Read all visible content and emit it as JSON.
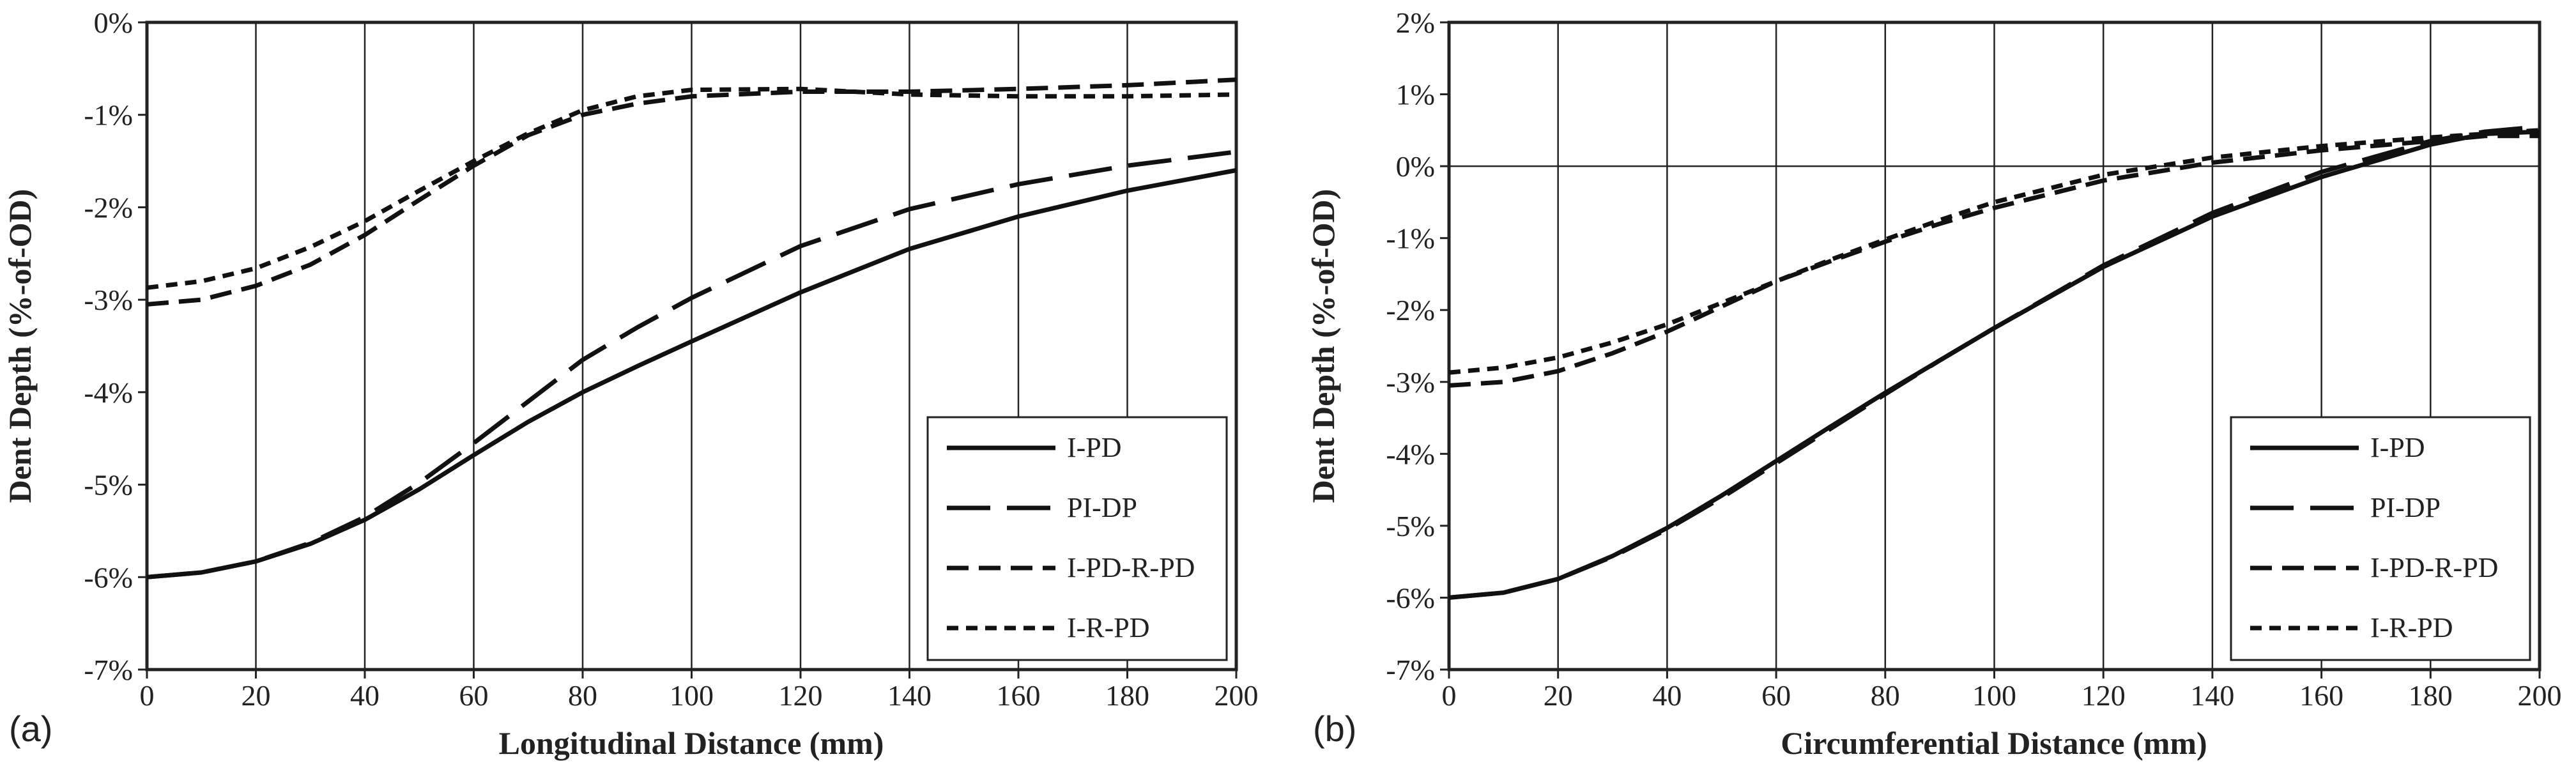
{
  "chart_data": [
    {
      "type": "line",
      "panel_label": "(a)",
      "xlabel": "Longitudinal Distance (mm)",
      "ylabel": "Dent Depth (%-of-OD)",
      "xlim": [
        0,
        200
      ],
      "ylim": [
        -7,
        0
      ],
      "xticks": [
        0,
        20,
        40,
        60,
        80,
        100,
        120,
        140,
        160,
        180,
        200
      ],
      "xtick_labels": [
        "0",
        "20",
        "40",
        "60",
        "80",
        "100",
        "120",
        "140",
        "160",
        "180",
        "200"
      ],
      "yticks": [
        0,
        -1,
        -2,
        -3,
        -4,
        -5,
        -6,
        -7
      ],
      "ytick_labels": [
        "0%",
        "-1%",
        "-2%",
        "-3%",
        "-4%",
        "-5%",
        "-6%",
        "-7%"
      ],
      "grid": "vertical",
      "zero_line": false,
      "legend_placement": "bottom-right",
      "series": [
        {
          "name": "I-PD",
          "style": "solid",
          "x": [
            0,
            10,
            20,
            30,
            40,
            50,
            60,
            70,
            80,
            90,
            100,
            120,
            140,
            160,
            180,
            200
          ],
          "values": [
            -6.0,
            -5.95,
            -5.83,
            -5.64,
            -5.38,
            -5.05,
            -4.68,
            -4.32,
            -4.0,
            -3.72,
            -3.45,
            -2.92,
            -2.45,
            -2.1,
            -1.82,
            -1.6
          ]
        },
        {
          "name": "PI-DP",
          "style": "long-dash",
          "x": [
            0,
            10,
            20,
            30,
            40,
            50,
            60,
            70,
            80,
            90,
            100,
            120,
            140,
            160,
            180,
            200
          ],
          "values": [
            -6.0,
            -5.95,
            -5.83,
            -5.63,
            -5.35,
            -4.98,
            -4.55,
            -4.1,
            -3.65,
            -3.3,
            -2.98,
            -2.42,
            -2.02,
            -1.75,
            -1.55,
            -1.4
          ]
        },
        {
          "name": "I-PD-R-PD",
          "style": "dash",
          "x": [
            0,
            10,
            20,
            30,
            40,
            50,
            60,
            70,
            80,
            90,
            100,
            120,
            140,
            160,
            180,
            200
          ],
          "values": [
            -3.05,
            -3.0,
            -2.85,
            -2.62,
            -2.3,
            -1.92,
            -1.55,
            -1.22,
            -1.0,
            -0.88,
            -0.8,
            -0.75,
            -0.75,
            -0.72,
            -0.68,
            -0.62
          ]
        },
        {
          "name": "I-R-PD",
          "style": "short-dash",
          "x": [
            0,
            10,
            20,
            30,
            40,
            50,
            60,
            70,
            80,
            90,
            100,
            120,
            140,
            160,
            180,
            200
          ],
          "values": [
            -2.87,
            -2.8,
            -2.66,
            -2.43,
            -2.15,
            -1.82,
            -1.5,
            -1.2,
            -0.95,
            -0.8,
            -0.73,
            -0.72,
            -0.78,
            -0.8,
            -0.8,
            -0.78
          ]
        }
      ]
    },
    {
      "type": "line",
      "panel_label": "(b)",
      "xlabel": "Circumferential Distance (mm)",
      "ylabel": "Dent Depth (%-of-OD)",
      "xlim": [
        0,
        200
      ],
      "ylim": [
        -7,
        2
      ],
      "xticks": [
        0,
        20,
        40,
        60,
        80,
        100,
        120,
        140,
        160,
        180,
        200
      ],
      "xtick_labels": [
        "0",
        "20",
        "40",
        "60",
        "80",
        "100",
        "120",
        "140",
        "160",
        "180",
        "200"
      ],
      "yticks": [
        2,
        1,
        0,
        -1,
        -2,
        -3,
        -4,
        -5,
        -6,
        -7
      ],
      "ytick_labels": [
        "2%",
        "1%",
        "0%",
        "-1%",
        "-2%",
        "-3%",
        "-4%",
        "-5%",
        "-6%",
        "-7%"
      ],
      "grid": "vertical",
      "zero_line": true,
      "legend_placement": "bottom-right",
      "series": [
        {
          "name": "I-PD",
          "style": "solid",
          "x": [
            0,
            10,
            20,
            30,
            40,
            50,
            60,
            70,
            80,
            90,
            100,
            120,
            140,
            160,
            180,
            190,
            200
          ],
          "values": [
            -6.0,
            -5.93,
            -5.74,
            -5.42,
            -5.03,
            -4.58,
            -4.1,
            -3.62,
            -3.15,
            -2.7,
            -2.25,
            -1.4,
            -0.7,
            -0.15,
            0.3,
            0.45,
            0.48
          ]
        },
        {
          "name": "PI-DP",
          "style": "long-dash",
          "x": [
            0,
            10,
            20,
            30,
            40,
            50,
            60,
            70,
            80,
            90,
            100,
            120,
            140,
            160,
            180,
            190,
            200
          ],
          "values": [
            -6.0,
            -5.93,
            -5.74,
            -5.43,
            -5.05,
            -4.61,
            -4.13,
            -3.65,
            -3.17,
            -2.7,
            -2.25,
            -1.38,
            -0.65,
            -0.08,
            0.35,
            0.48,
            0.55
          ]
        },
        {
          "name": "I-PD-R-PD",
          "style": "dash",
          "x": [
            0,
            10,
            20,
            30,
            40,
            50,
            60,
            70,
            80,
            90,
            100,
            120,
            140,
            160,
            180,
            190,
            200
          ],
          "values": [
            -3.05,
            -3.0,
            -2.85,
            -2.6,
            -2.3,
            -1.95,
            -1.6,
            -1.32,
            -1.05,
            -0.8,
            -0.58,
            -0.2,
            0.05,
            0.22,
            0.35,
            0.42,
            0.42
          ]
        },
        {
          "name": "I-R-PD",
          "style": "short-dash",
          "x": [
            0,
            10,
            20,
            30,
            40,
            50,
            60,
            70,
            80,
            90,
            100,
            120,
            140,
            160,
            180,
            190,
            200
          ],
          "values": [
            -2.87,
            -2.8,
            -2.66,
            -2.45,
            -2.2,
            -1.9,
            -1.6,
            -1.3,
            -1.02,
            -0.75,
            -0.5,
            -0.12,
            0.12,
            0.28,
            0.4,
            0.45,
            0.5
          ]
        }
      ]
    }
  ]
}
